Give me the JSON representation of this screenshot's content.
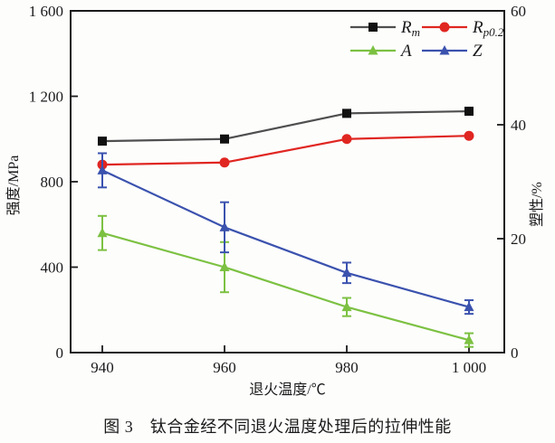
{
  "figure": {
    "caption": "图 3　钛合金经不同退火温度处理后的拉伸性能"
  },
  "chart_data": {
    "type": "line",
    "x": [
      940,
      960,
      980,
      1000
    ],
    "x_tick_labels": [
      "940",
      "960",
      "980",
      "1 000"
    ],
    "xlabel": "退火温度/℃",
    "left_axis": {
      "label": "强度/MPa",
      "min": 0,
      "max": 1600,
      "ticks": [
        0,
        400,
        800,
        1200,
        1600
      ],
      "tick_labels": [
        "0",
        "400",
        "800",
        "1 200",
        "1 600"
      ]
    },
    "right_axis": {
      "label": "塑性/%",
      "min": 0,
      "max": 60,
      "ticks": [
        0,
        20,
        40,
        60
      ],
      "tick_labels": [
        "0",
        "20",
        "40",
        "60"
      ]
    },
    "grid": false,
    "legend_position": "top-right-inside",
    "series": [
      {
        "name": "Rm",
        "legend_main": "R",
        "legend_sub": "m",
        "axis": "left",
        "marker": "square",
        "line_color": "#4f4f4f",
        "marker_color": "#111111",
        "values": [
          990,
          1000,
          1120,
          1130
        ],
        "err": [
          0,
          0,
          0,
          0
        ]
      },
      {
        "name": "Rp0.2",
        "legend_main": "R",
        "legend_sub": "p0.2",
        "axis": "left",
        "marker": "circle",
        "line_color": "#e02621",
        "marker_color": "#e02621",
        "values": [
          880,
          890,
          1000,
          1015
        ],
        "err": [
          0,
          0,
          0,
          0
        ]
      },
      {
        "name": "A",
        "legend_main": "A",
        "legend_sub": "",
        "axis": "right",
        "marker": "triangle",
        "line_color": "#7cc142",
        "marker_color": "#7cc142",
        "values": [
          21,
          15,
          8,
          2.2
        ],
        "err": [
          3.0,
          4.4,
          1.6,
          1.2
        ]
      },
      {
        "name": "Z",
        "legend_main": "Z",
        "legend_sub": "",
        "axis": "right",
        "marker": "triangle",
        "line_color": "#3b52ae",
        "marker_color": "#3b52ae",
        "values": [
          32,
          22,
          14,
          8
        ],
        "err": [
          3.0,
          4.4,
          1.8,
          1.2
        ]
      }
    ]
  }
}
